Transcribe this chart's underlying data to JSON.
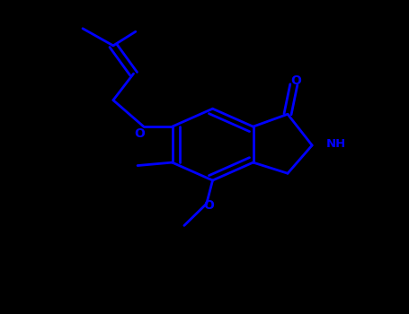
{
  "background_color": "#000000",
  "line_color": "#0000FF",
  "line_width": 2.0,
  "figsize": [
    4.55,
    3.5
  ],
  "dpi": 100,
  "xlim": [
    0,
    10
  ],
  "ylim": [
    0,
    10
  ]
}
